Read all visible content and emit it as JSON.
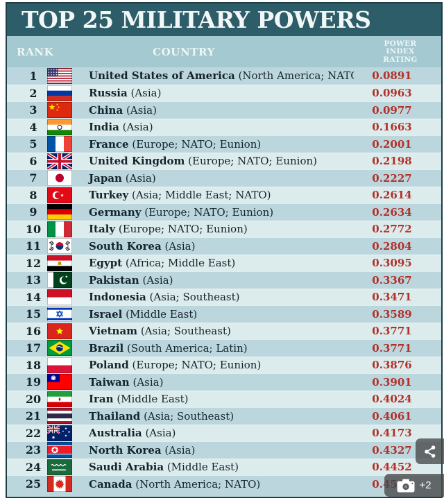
{
  "chart_data": {
    "type": "table",
    "title": "TOP 25 MILITARY POWERS",
    "columns": {
      "rank": "RANK",
      "country": "COUNTRY",
      "rating_lines": [
        "POWER",
        "INDEX",
        "RATING"
      ]
    },
    "rows": [
      {
        "rank": "1",
        "flag": "united-states",
        "country": "United States of America",
        "region": "(North America; NATO)",
        "rating": "0.0891"
      },
      {
        "rank": "2",
        "flag": "russia",
        "country": "Russia",
        "region": "(Asia)",
        "rating": "0.0963"
      },
      {
        "rank": "3",
        "flag": "china",
        "country": "China",
        "region": "(Asia)",
        "rating": "0.0977"
      },
      {
        "rank": "4",
        "flag": "india",
        "country": "India",
        "region": "(Asia)",
        "rating": "0.1663"
      },
      {
        "rank": "5",
        "flag": "france",
        "country": "France",
        "region": "(Europe; NATO; Eunion)",
        "rating": "0.2001"
      },
      {
        "rank": "6",
        "flag": "united-kingdom",
        "country": "United Kingdom",
        "region": "(Europe; NATO; Eunion)",
        "rating": "0.2198"
      },
      {
        "rank": "7",
        "flag": "japan",
        "country": "Japan",
        "region": "(Asia)",
        "rating": "0.2227"
      },
      {
        "rank": "8",
        "flag": "turkey",
        "country": "Turkey",
        "region": "(Asia; Middle East; NATO)",
        "rating": "0.2614"
      },
      {
        "rank": "9",
        "flag": "germany",
        "country": "Germany",
        "region": "(Europe; NATO; Eunion)",
        "rating": "0.2634"
      },
      {
        "rank": "10",
        "flag": "italy",
        "country": "Italy",
        "region": "(Europe; NATO; Eunion)",
        "rating": "0.2772"
      },
      {
        "rank": "11",
        "flag": "south-korea",
        "country": "South Korea",
        "region": "(Asia)",
        "rating": "0.2804"
      },
      {
        "rank": "12",
        "flag": "egypt",
        "country": "Egypt",
        "region": "(Africa; Middle East)",
        "rating": "0.3095"
      },
      {
        "rank": "13",
        "flag": "pakistan",
        "country": "Pakistan",
        "region": "(Asia)",
        "rating": "0.3367"
      },
      {
        "rank": "14",
        "flag": "indonesia",
        "country": "Indonesia",
        "region": "(Asia; Southeast)",
        "rating": "0.3471"
      },
      {
        "rank": "15",
        "flag": "israel",
        "country": "Israel",
        "region": "(Middle East)",
        "rating": "0.3589"
      },
      {
        "rank": "16",
        "flag": "vietnam",
        "country": "Vietnam",
        "region": "(Asia; Southeast)",
        "rating": "0.3771"
      },
      {
        "rank": "17",
        "flag": "brazil",
        "country": "Brazil",
        "region": "(South America; Latin)",
        "rating": "0.3771"
      },
      {
        "rank": "18",
        "flag": "poland",
        "country": "Poland",
        "region": "(Europe; NATO; Eunion)",
        "rating": "0.3876"
      },
      {
        "rank": "19",
        "flag": "taiwan",
        "country": "Taiwan",
        "region": "(Asia)",
        "rating": "0.3901"
      },
      {
        "rank": "20",
        "flag": "iran",
        "country": "Iran",
        "region": "(Middle East)",
        "rating": "0.4024"
      },
      {
        "rank": "21",
        "flag": "thailand",
        "country": "Thailand",
        "region": "(Asia; Southeast)",
        "rating": "0.4061"
      },
      {
        "rank": "22",
        "flag": "australia",
        "country": "Australia",
        "region": "(Asia)",
        "rating": "0.4173"
      },
      {
        "rank": "23",
        "flag": "north-korea",
        "country": "North Korea",
        "region": "(Asia)",
        "rating": "0.4327"
      },
      {
        "rank": "24",
        "flag": "saudi-arabia",
        "country": "Saudi Arabia",
        "region": "(Middle East)",
        "rating": "0.4452"
      },
      {
        "rank": "25",
        "flag": "canada",
        "country": "Canada",
        "region": "(North America; NATO)",
        "rating": "0.4545"
      }
    ]
  },
  "overlays": {
    "share_icon": "share-icon",
    "camera_icon": "camera-icon",
    "photos_badge_label": "+2"
  },
  "colors": {
    "title_bar": "#2d5d68",
    "header_band": "#a5c9d0",
    "row_odd": "#bcd6dd",
    "row_even": "#dcebec",
    "rating_text": "#b23028",
    "body_text": "#14242c",
    "title_text": "#f2f7f7",
    "frame_border": "#1d3d47",
    "overlay_bg": "rgba(72,72,72,0.78)"
  }
}
